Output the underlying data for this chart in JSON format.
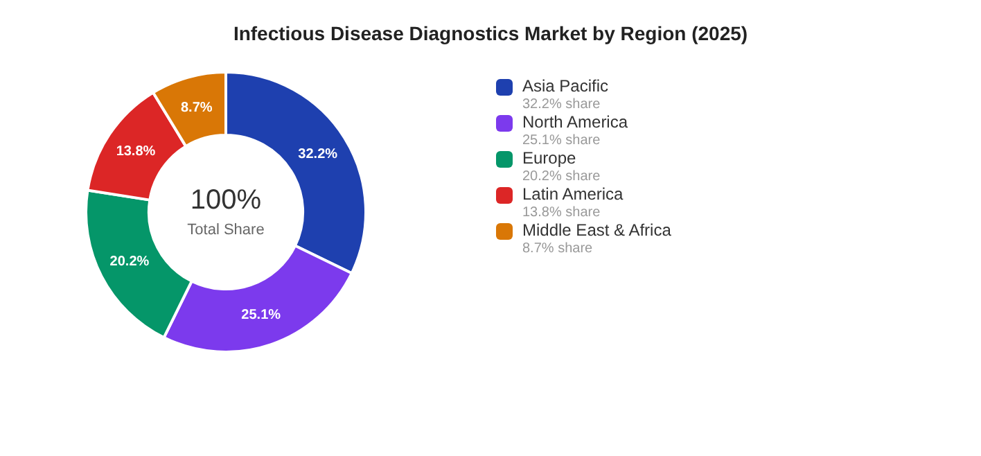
{
  "chart_data": {
    "type": "donut",
    "title": "Infectious Disease Diagnostics Market by Region (2025)",
    "categories": [
      "Asia Pacific",
      "North America",
      "Europe",
      "Latin America",
      "Middle East & Africa"
    ],
    "values": [
      32.2,
      25.1,
      20.2,
      13.8,
      8.7
    ],
    "colors": [
      "#1e40af",
      "#7c3aed",
      "#059669",
      "#dc2626",
      "#d97706"
    ],
    "value_labels": [
      "32.2%",
      "25.1%",
      "20.2%",
      "13.8%",
      "8.7%"
    ],
    "annotations": [
      "100%",
      "Total Share",
      "32.2% share",
      "25.1% share",
      "20.2% share",
      "13.8% share",
      "8.7% share"
    ],
    "legend": "right"
  }
}
